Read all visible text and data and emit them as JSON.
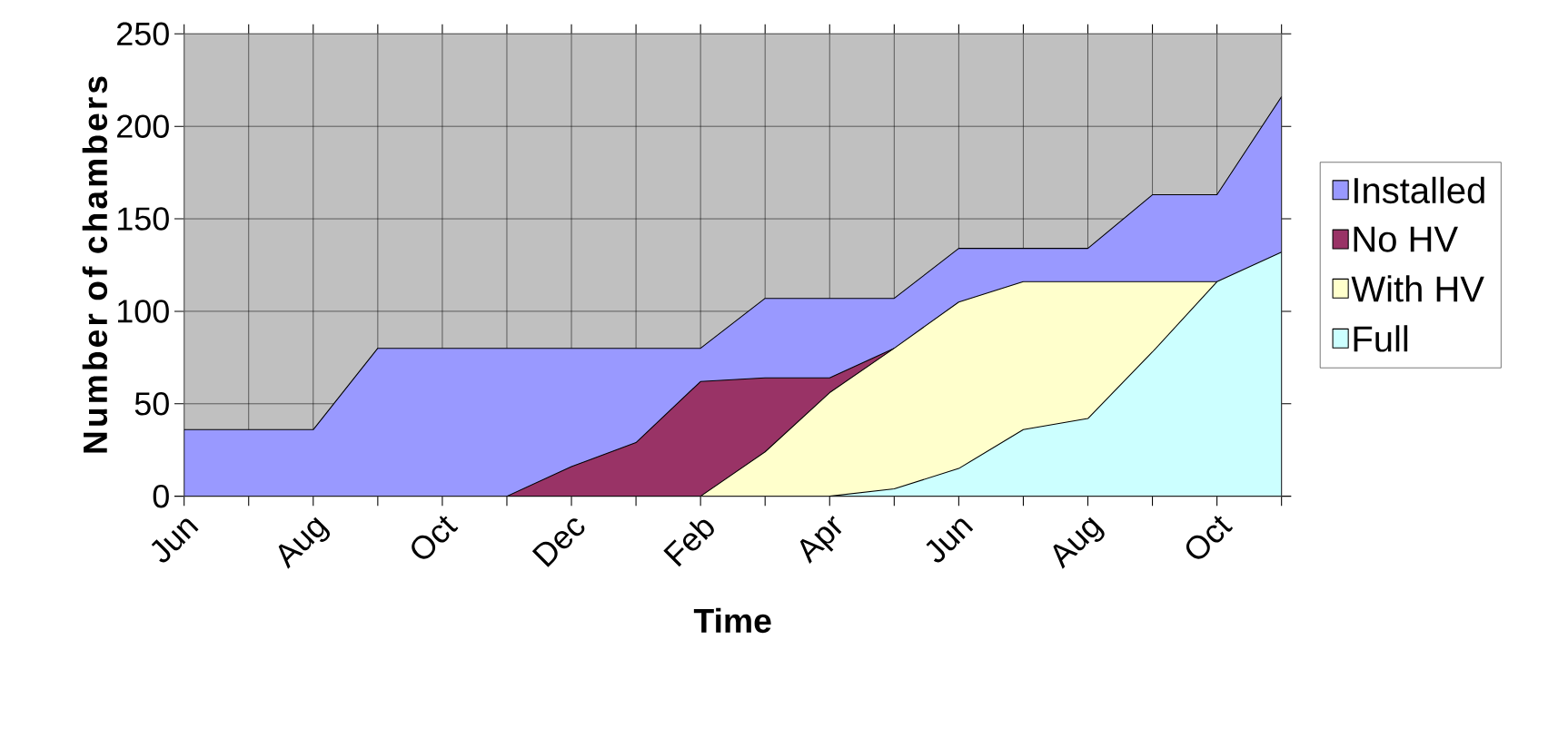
{
  "chart_data": {
    "type": "area",
    "xlabel": "Time",
    "ylabel": "Number of chambers",
    "categories": [
      "Jun",
      null,
      "Aug",
      null,
      "Oct",
      null,
      "Dec",
      null,
      "Feb",
      null,
      "Apr",
      null,
      "Jun",
      null,
      "Aug",
      null,
      "Oct",
      null
    ],
    "series": [
      {
        "name": "Installed",
        "color": "#9999ff",
        "values": [
          36,
          36,
          36,
          80,
          80,
          80,
          80,
          80,
          80,
          107,
          107,
          107,
          134,
          134,
          134,
          163,
          163,
          216
        ]
      },
      {
        "name": "No HV",
        "color": "#993366",
        "values": [
          null,
          null,
          null,
          null,
          null,
          0,
          16,
          29,
          62,
          64,
          64,
          80,
          null,
          null,
          null,
          null,
          null,
          null
        ]
      },
      {
        "name": "With HV",
        "color": "#ffffcc",
        "values": [
          null,
          null,
          null,
          null,
          null,
          null,
          null,
          null,
          0,
          24,
          56,
          80,
          105,
          116,
          116,
          116,
          116,
          null
        ]
      },
      {
        "name": "Full",
        "color": "#ccffff",
        "values": [
          null,
          null,
          null,
          null,
          null,
          null,
          null,
          null,
          null,
          null,
          0,
          4,
          15,
          36,
          42,
          78,
          116,
          132
        ]
      }
    ],
    "ylim": [
      0,
      250
    ],
    "yticks": [
      0,
      50,
      100,
      150,
      200,
      250
    ],
    "grid": true,
    "legend": "right"
  }
}
